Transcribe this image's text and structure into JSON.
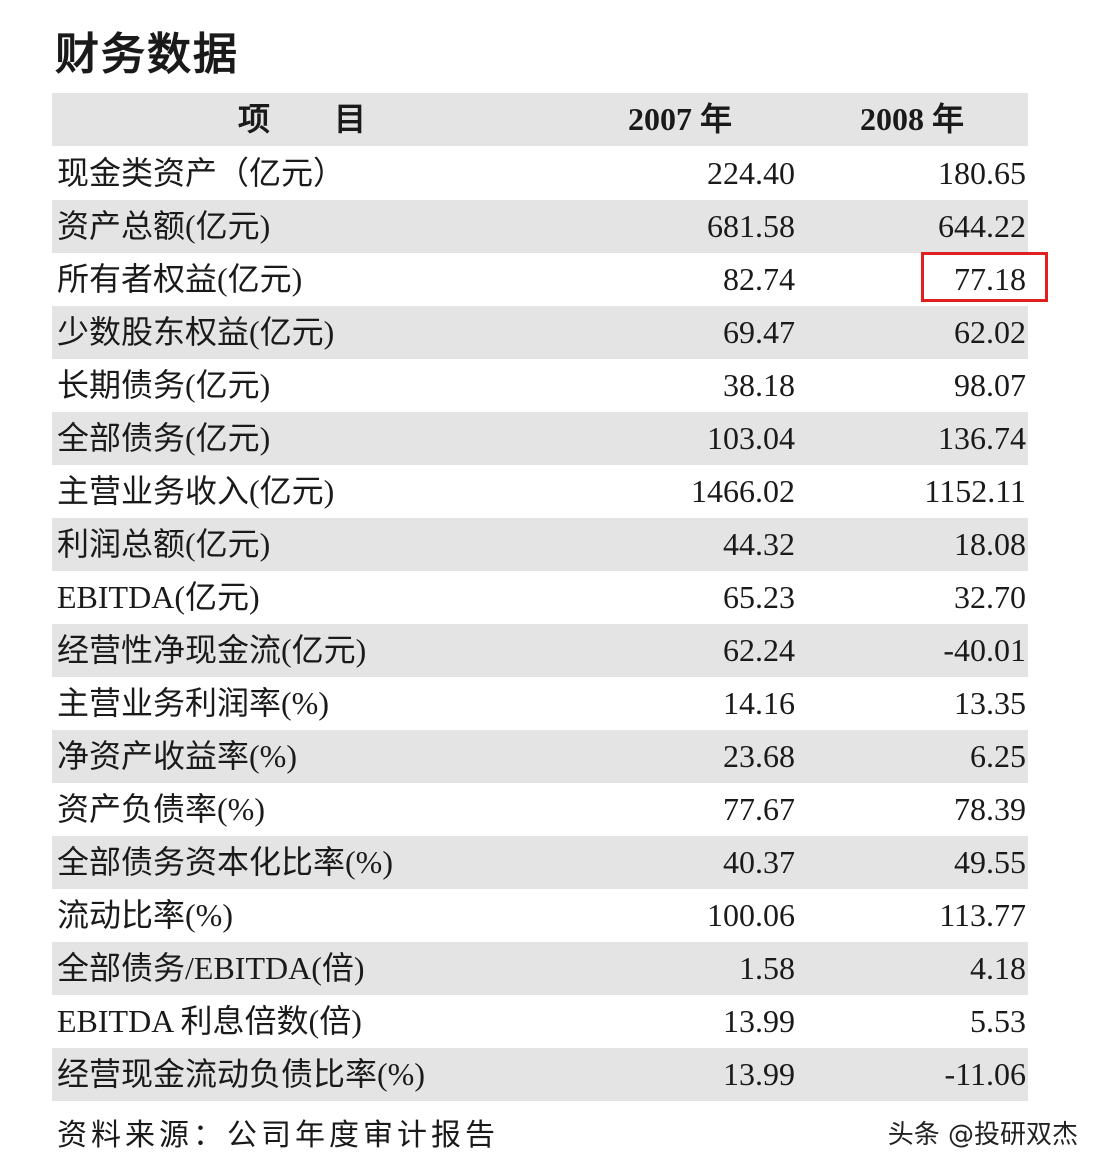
{
  "title": "财务数据",
  "table": {
    "header": [
      "项　　目",
      "2007 年",
      "2008 年"
    ],
    "rows": [
      [
        "现金类资产（亿元）",
        "224.40",
        "180.65"
      ],
      [
        "资产总额(亿元)",
        "681.58",
        "644.22"
      ],
      [
        "所有者权益(亿元)",
        "82.74",
        "77.18"
      ],
      [
        "少数股东权益(亿元)",
        "69.47",
        "62.02"
      ],
      [
        "长期债务(亿元)",
        "38.18",
        "98.07"
      ],
      [
        "全部债务(亿元)",
        "103.04",
        "136.74"
      ],
      [
        "主营业务收入(亿元)",
        "1466.02",
        "1152.11"
      ],
      [
        "利润总额(亿元)",
        "44.32",
        "18.08"
      ],
      [
        "EBITDA(亿元)",
        "65.23",
        "32.70"
      ],
      [
        "经营性净现金流(亿元)",
        "62.24",
        "-40.01"
      ],
      [
        "主营业务利润率(%)",
        "14.16",
        "13.35"
      ],
      [
        "净资产收益率(%)",
        "23.68",
        "6.25"
      ],
      [
        "资产负债率(%)",
        "77.67",
        "78.39"
      ],
      [
        "全部债务资本化比率(%)",
        "40.37",
        "49.55"
      ],
      [
        "流动比率(%)",
        "100.06",
        "113.77"
      ],
      [
        "全部债务/EBITDA(倍)",
        "1.58",
        "4.18"
      ],
      [
        "EBITDA 利息倍数(倍)",
        "13.99",
        "5.53"
      ],
      [
        "经营现金流动负债比率(%)",
        "13.99",
        "-11.06"
      ]
    ]
  },
  "source": "资料来源：公司年度审计报告",
  "watermark": "头条 @投研双杰"
}
